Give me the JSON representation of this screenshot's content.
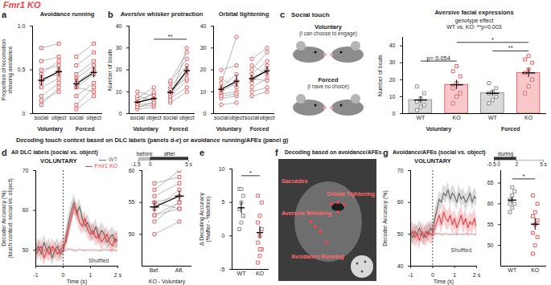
{
  "figure_title": "Fmr1 KO",
  "section_title": "Decoding touch context based on DLC labels (panels d-e) or avoidance running/AFEs (panel g)",
  "chart_data": [
    {
      "panel": "a",
      "type": "paired_dot",
      "title": "Avoidance running",
      "ylabel": [
        "Proportion of locomotion",
        "showing avoidance"
      ],
      "categories": [
        "social",
        "object",
        "social",
        "object"
      ],
      "groups": [
        "Voluntary",
        "Forced"
      ],
      "points": [
        [
          0.15,
          0.2,
          0.3,
          0.35,
          0.4,
          0.45,
          0.5,
          0.6,
          0.75,
          0.1
        ],
        [
          0.25,
          0.35,
          0.4,
          0.5,
          0.45,
          0.6,
          0.55,
          0.65,
          0.8,
          0.3
        ],
        [
          0.05,
          0.1,
          0.2,
          0.3,
          0.35,
          0.4,
          0.45,
          0.55,
          0.65,
          0.3
        ],
        [
          0.2,
          0.3,
          0.35,
          0.45,
          0.5,
          0.55,
          0.6,
          0.7,
          0.8,
          0.25
        ]
      ],
      "means": [
        0.38,
        0.48,
        0.34,
        0.47
      ],
      "sem": [
        0.06,
        0.05,
        0.06,
        0.06
      ],
      "color": "#e8474b",
      "marker": "square",
      "ylim": [
        0,
        1
      ],
      "yticks": [
        0,
        0.5,
        {
          "value": 1,
          "label": "1.0"
        }
      ]
    },
    {
      "panel": "b",
      "type": "paired_dot",
      "title": "Aversive whisker protraction",
      "ylabel": "Number of bouts",
      "categories": [
        "social",
        "object",
        "social",
        "object"
      ],
      "groups": [
        "Voluntary",
        "Forced"
      ],
      "points": [
        [
          2,
          3,
          4,
          5,
          6,
          7,
          8,
          10,
          4,
          3
        ],
        [
          3,
          4,
          5,
          7,
          9,
          12,
          6,
          8,
          10,
          5
        ],
        [
          5,
          7,
          8,
          9,
          10,
          12,
          14,
          15,
          6,
          11
        ],
        [
          10,
          12,
          15,
          18,
          20,
          22,
          25,
          28,
          30,
          16
        ]
      ],
      "means": [
        5.2,
        6.9,
        9.7,
        19.6
      ],
      "sem": [
        0.8,
        0.9,
        1.0,
        2.0
      ],
      "color": "#e8474b",
      "marker": "circle",
      "ylim": [
        0,
        40
      ],
      "yticks": [
        0,
        10,
        20,
        30,
        40
      ],
      "brackets": [
        {
          "text": "**",
          "from": 1,
          "to": 3,
          "y": 34
        }
      ]
    },
    {
      "type": "paired_dot",
      "title": "Orbital tightening",
      "categories": [
        "social",
        "object",
        "social",
        "object"
      ],
      "groups": [
        "Voluntary",
        "Forced"
      ],
      "points": [
        [
          4,
          7,
          9,
          10,
          12,
          14,
          16,
          8,
          11,
          20
        ],
        [
          5,
          8,
          10,
          14,
          18,
          35,
          12,
          9,
          15,
          22
        ],
        [
          8,
          10,
          12,
          15,
          18,
          20,
          22,
          14,
          16,
          25
        ],
        [
          10,
          12,
          16,
          20,
          24,
          28,
          18,
          22,
          15,
          30
        ]
      ],
      "means": [
        11.1,
        14.8,
        16,
        19.5
      ],
      "sem": [
        1.5,
        2.8,
        1.6,
        2.0
      ],
      "color": "#e8474b",
      "marker": "circle",
      "ylim": [
        0,
        40
      ],
      "yticks": [
        0,
        10,
        20,
        30,
        40
      ]
    },
    {
      "panel": "c",
      "type": "bar",
      "title": "Aversive facial expressions",
      "ylabel": "Number of bouts",
      "notes": [
        "genotype effect",
        "WT vs. KO: **p=0.003"
      ],
      "illustration": {
        "title": "Social touch",
        "rows": [
          {
            "label": "Voluntary",
            "note": "(I can choose to engage)"
          },
          {
            "label": "Forced",
            "note": "(I have no choice)"
          }
        ]
      },
      "categories": [
        "WT",
        "KO",
        "WT",
        "KO"
      ],
      "groups": [
        "Voluntary",
        "Forced"
      ],
      "points": [
        [
          2,
          4,
          5,
          7,
          9,
          12,
          16
        ],
        [
          6,
          10,
          12,
          15,
          18,
          22,
          25,
          28
        ],
        [
          6,
          8,
          10,
          12,
          13,
          15,
          18
        ],
        [
          12,
          16,
          20,
          24,
          26,
          30,
          32,
          34
        ]
      ],
      "means": [
        8,
        17,
        12,
        24
      ],
      "sem": [
        2,
        2.7,
        1.5,
        2.6
      ],
      "colors": [
        "#808080",
        "#e8474b",
        "#808080",
        "#e8474b"
      ],
      "marker": "square",
      "ylim": [
        0,
        45
      ],
      "yticks": [
        0,
        10,
        20,
        30,
        40
      ],
      "brackets": [
        {
          "text": "p= 0.054",
          "from": 0,
          "to": 1,
          "y": 31
        },
        {
          "text": "**",
          "from": 2,
          "to": 3,
          "y": 37
        },
        {
          "text": "*",
          "from": 1,
          "to": 3,
          "y": 42
        }
      ]
    },
    {
      "panel": "d",
      "type": "line",
      "header": "All DLC labels (social vs. object)",
      "title": "VOLUNTARY",
      "ylabel": [
        "Decoder Accuracy (%)",
        "(touch context: social vs. object)"
      ],
      "xlabel": "Time (s)",
      "x": [
        -1,
        -0.9,
        -0.8,
        -0.7,
        -0.6,
        -0.5,
        -0.4,
        -0.3,
        -0.2,
        -0.1,
        0,
        0.1,
        0.2,
        0.3,
        0.4,
        0.5,
        0.6,
        0.7,
        0.8,
        0.9,
        1,
        1.1,
        1.2,
        1.3,
        1.4,
        1.5,
        1.6,
        1.7,
        1.8,
        1.9,
        2
      ],
      "series": [
        {
          "name": "WT",
          "color": "#707070",
          "sem": 2,
          "values": [
            50,
            51,
            49,
            52,
            50,
            51,
            48,
            50,
            51,
            49,
            50,
            53,
            57,
            60,
            62,
            59,
            61,
            58,
            56,
            57,
            55,
            54,
            56,
            53,
            55,
            54,
            52,
            53,
            54,
            52,
            53
          ]
        },
        {
          "name": "Fmr1 KO",
          "color": "#e8474b",
          "sem": 2,
          "values": [
            49,
            50,
            51,
            48,
            50,
            49,
            51,
            50,
            49,
            50,
            51,
            52,
            55,
            58,
            61,
            60,
            57,
            56,
            58,
            55,
            54,
            55,
            53,
            54,
            52,
            53,
            54,
            52,
            51,
            53,
            52
          ]
        }
      ],
      "shuffled": [
        {
          "color": "#999999",
          "values": [
            50,
            50.3,
            49.8,
            50.1,
            49.9,
            50.2,
            50,
            49.7,
            50.1,
            50,
            49.9,
            50.2,
            50.4,
            50.1,
            49.8,
            50,
            50.3,
            49.9,
            50.1,
            50,
            49.8,
            50.2,
            50,
            49.9,
            50.1,
            50.3,
            49.9,
            50,
            50.2,
            49.8,
            50
          ]
        },
        {
          "color": "#f08a8c",
          "values": [
            49.8,
            50,
            50.2,
            49.9,
            50.1,
            49.7,
            50,
            50.3,
            49.9,
            50.1,
            50,
            49.8,
            50.1,
            50.3,
            50,
            49.9,
            50.2,
            50,
            49.8,
            50.1,
            50.2,
            49.9,
            50.1,
            50,
            49.8,
            50,
            50.2,
            49.9,
            50.1,
            50,
            49.9
          ]
        }
      ],
      "annotations": [
        {
          "text": "Shuffled",
          "x": 1.3,
          "y": 47.3
        }
      ],
      "vline": 0,
      "legend": "top-right",
      "xlim": [
        -1,
        2
      ],
      "xticks": [
        -1,
        0,
        1,
        {
          "value": 2,
          "label": "2 s"
        }
      ],
      "ylim": [
        46,
        70
      ],
      "yticks": [
        50,
        60,
        70
      ]
    },
    {
      "type": "paired_dot",
      "xlabel": "KO - Voluntary",
      "categories": [
        "Bef.",
        "Aft."
      ],
      "window": {
        "xlim": [
          -1.5,
          5
        ],
        "ticks": [
          -1.5,
          0,
          {
            "value": 5,
            "label": "5 s"
          }
        ],
        "segments": [
          {
            "label": "before",
            "from": -1.5,
            "to": 0,
            "color": "#bbbbbb"
          },
          {
            "label": "after",
            "from": 0,
            "to": 5,
            "color": "#333333"
          }
        ]
      },
      "points": [
        [
          50,
          52,
          53,
          54,
          55,
          56,
          57,
          55,
          53,
          58
        ],
        [
          52,
          55,
          54,
          57,
          56,
          58,
          60,
          54,
          55,
          59
        ]
      ],
      "means": [
        54.3,
        56
      ],
      "sem": [
        0.8,
        0.8
      ],
      "color": "#e8474b",
      "marker": "square",
      "ylim": [
        45,
        60
      ],
      "yticks": [
        50,
        55,
        60
      ]
    },
    {
      "panel": "e",
      "type": "dot",
      "ylabel": [
        "Δ Decoding Accuracy",
        "(%after - %before)"
      ],
      "categories": [
        "WT",
        "KO"
      ],
      "colors": [
        "#808080",
        "#e8474b"
      ],
      "marker": "square",
      "points": [
        [
          1,
          2,
          3,
          4,
          5,
          6,
          7,
          7,
          3
        ],
        [
          -4,
          -3,
          -2,
          -1,
          0,
          1,
          2,
          3,
          5,
          6,
          -2
        ]
      ],
      "means": [
        4.2,
        0.5
      ],
      "sem": [
        0.9,
        0.9
      ],
      "ylim": [
        -5,
        10
      ],
      "yticks": [
        -5,
        0,
        5,
        10
      ],
      "brackets": [
        {
          "text": "*",
          "from": 0,
          "to": 1,
          "y": 9
        }
      ]
    },
    {
      "panel": "f",
      "type": "image",
      "title": "Decoding based on avoidance/AFEs",
      "labels": [
        "Saccades",
        "Orbital Tightening",
        "Aversive Whisking",
        "Avoidance Running"
      ]
    },
    {
      "panel": "g",
      "type": "line",
      "header": "Avoidance/AFEs (social vs. object)",
      "title": "VOLUNTARY",
      "ylabel": "Decoder Accuracy (%)",
      "xlabel": "Time (s)",
      "x": [
        -1,
        -0.9,
        -0.8,
        -0.7,
        -0.6,
        -0.5,
        -0.4,
        -0.3,
        -0.2,
        -0.1,
        0,
        0.1,
        0.2,
        0.3,
        0.4,
        0.5,
        0.6,
        0.7,
        0.8,
        0.9,
        1,
        1.1,
        1.2,
        1.3,
        1.4,
        1.5,
        1.6,
        1.7,
        1.8,
        1.9,
        2
      ],
      "series": [
        {
          "color": "#707070",
          "sem": 2.5,
          "values": [
            50,
            49,
            51,
            50,
            52,
            50,
            49,
            51,
            50,
            52,
            51,
            55,
            58,
            61,
            60,
            63,
            62,
            64,
            61,
            63,
            62,
            60,
            63,
            61,
            62,
            60,
            61,
            63,
            60,
            62,
            61
          ]
        },
        {
          "color": "#e8474b",
          "sem": 3,
          "values": [
            50,
            51,
            49,
            50,
            48,
            51,
            50,
            49,
            51,
            50,
            50,
            52,
            54,
            56,
            53,
            57,
            55,
            54,
            56,
            53,
            55,
            52,
            54,
            56,
            53,
            55,
            52,
            54,
            53,
            55,
            52
          ]
        }
      ],
      "shuffled": [
        {
          "color": "#999999",
          "values": [
            50,
            50.3,
            49.8,
            50.1,
            49.9,
            50.2,
            50,
            49.7,
            50.1,
            50,
            49.9,
            50.2,
            50.4,
            50.1,
            49.8,
            50,
            50.3,
            49.9,
            50.1,
            50,
            49.8,
            50.2,
            50,
            49.9,
            50.1,
            50.3,
            49.9,
            50,
            50.2,
            49.8,
            50
          ]
        },
        {
          "color": "#f08a8c",
          "values": [
            49.8,
            50,
            50.2,
            49.9,
            50.1,
            49.7,
            50,
            50.3,
            49.9,
            50.1,
            50,
            49.8,
            50.1,
            50.3,
            50,
            49.9,
            50.2,
            50,
            49.8,
            50.1,
            50.2,
            49.9,
            50.1,
            50,
            49.8,
            50,
            50.2,
            49.9,
            50.1,
            50,
            49.9
          ]
        }
      ],
      "annotations": [
        {
          "text": "Shuffled",
          "x": 1.3,
          "y": 45
        }
      ],
      "vline": 0,
      "xlim": [
        -1,
        2
      ],
      "xticks": [
        -1,
        0,
        1,
        {
          "value": 2,
          "label": "2 s"
        }
      ],
      "ylim": [
        40,
        70
      ],
      "yticks": [
        40,
        50,
        60,
        70
      ]
    },
    {
      "type": "dot",
      "categories": [
        "WT",
        "KO"
      ],
      "colors": [
        "#808080",
        "#e8474b"
      ],
      "marker": "square",
      "window": {
        "xlim": [
          -0.5,
          5
        ],
        "ticks": [
          -0.5,
          0,
          2,
          {
            "value": 5,
            "label": "5 s"
          }
        ],
        "segments": [
          {
            "label": "during",
            "from": -0.5,
            "to": 2,
            "color": "#333333"
          }
        ]
      },
      "points": [
        [
          58,
          59,
          60,
          61,
          62,
          63,
          60,
          64
        ],
        [
          48,
          50,
          52,
          53,
          55,
          56,
          57,
          58,
          60,
          62
        ]
      ],
      "means": [
        60.9,
        55.1
      ],
      "sem": [
        0.7,
        1.4
      ],
      "ylim": [
        45,
        68
      ],
      "yticks": [
        50,
        55,
        60,
        65
      ],
      "brackets": [
        {
          "text": "*",
          "from": 0,
          "to": 1,
          "y": 66
        }
      ]
    }
  ]
}
